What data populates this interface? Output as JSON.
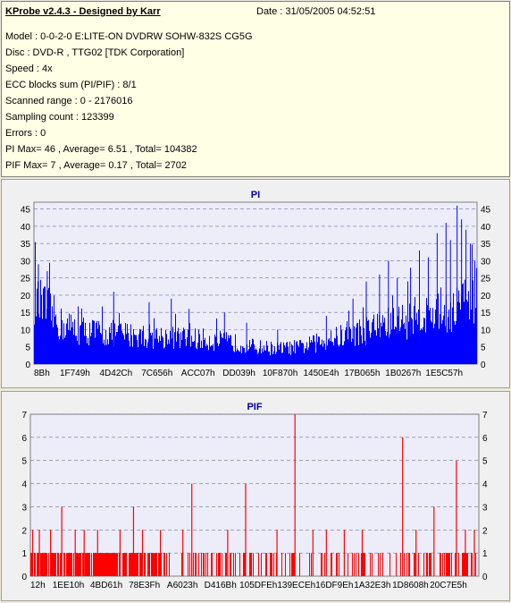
{
  "header": {
    "title": "KProbe v2.4.3 - Designed by Karr",
    "date": "Date : 31/05/2005 04:52:51",
    "lines": [
      "Model : 0-0-2-0 E:LITE-ON DVDRW SOHW-832S  CG5G",
      "Disc : DVD-R , TTG02 [TDK Corporation]",
      "Speed : 4x",
      "ECC blocks sum (PI/PIF) : 8/1",
      "Scanned range : 0 - 2176016",
      "Sampling count : 123399",
      "Errors : 0",
      "PI Max= 46 , Average= 6.51 , Total= 104382",
      "PIF Max= 7 , Average= 0.17 , Total= 2702"
    ]
  },
  "colors": {
    "plot_bg": "#ededfa",
    "pi_bar": "#0000ff",
    "pif_bar": "#ff0000",
    "grid": "#7070a0",
    "title": "#0000a0"
  },
  "chart_data": [
    {
      "type": "bar",
      "title": "PI",
      "ylim": [
        0,
        47
      ],
      "yticks": [
        0,
        5,
        10,
        15,
        20,
        25,
        30,
        35,
        40,
        45
      ],
      "xticks": [
        "8Bh",
        "1F749h",
        "4D42Ch",
        "7C656h",
        "ACC07h",
        "DD039h",
        "10F870h",
        "1450E4h",
        "17B065h",
        "1B0267h",
        "1E5C57h"
      ],
      "grid": true,
      "envelope": [
        [
          0,
          22
        ],
        [
          0.03,
          19
        ],
        [
          0.06,
          14
        ],
        [
          0.1,
          12
        ],
        [
          0.15,
          11
        ],
        [
          0.2,
          10.5
        ],
        [
          0.25,
          10
        ],
        [
          0.3,
          9.5
        ],
        [
          0.35,
          9
        ],
        [
          0.4,
          8.5
        ],
        [
          0.45,
          7.5
        ],
        [
          0.5,
          6
        ],
        [
          0.55,
          5.5
        ],
        [
          0.6,
          6
        ],
        [
          0.65,
          8
        ],
        [
          0.7,
          10
        ],
        [
          0.75,
          12
        ],
        [
          0.8,
          14
        ],
        [
          0.85,
          16
        ],
        [
          0.9,
          18
        ],
        [
          0.95,
          20
        ],
        [
          1.0,
          22
        ]
      ],
      "spikes": [
        [
          0.01,
          29
        ],
        [
          0.03,
          27
        ],
        [
          0.18,
          21
        ],
        [
          0.26,
          18
        ],
        [
          0.31,
          19
        ],
        [
          0.35,
          16
        ],
        [
          0.43,
          15
        ],
        [
          0.48,
          12
        ],
        [
          0.55,
          10
        ],
        [
          0.66,
          14
        ],
        [
          0.72,
          19
        ],
        [
          0.75,
          24
        ],
        [
          0.78,
          26
        ],
        [
          0.8,
          30
        ],
        [
          0.82,
          25
        ],
        [
          0.85,
          28
        ],
        [
          0.87,
          33
        ],
        [
          0.89,
          31
        ],
        [
          0.91,
          38
        ],
        [
          0.93,
          41
        ],
        [
          0.94,
          36
        ],
        [
          0.955,
          46
        ],
        [
          0.965,
          42
        ],
        [
          0.975,
          39
        ],
        [
          0.985,
          35
        ],
        [
          0.995,
          30
        ]
      ]
    },
    {
      "type": "bar",
      "title": "PIF",
      "ylim": [
        0,
        7
      ],
      "yticks": [
        0,
        1,
        2,
        3,
        4,
        5,
        6,
        7
      ],
      "xticks": [
        "12h",
        "1EE10h",
        "4BD61h",
        "78E3Fh",
        "A6023h",
        "D416Bh",
        "105DFEh",
        "139ECEh",
        "16DF9Eh",
        "1A32E3h",
        "1D8608h",
        "20C7E5h"
      ],
      "grid": true,
      "spikes": [
        [
          0.005,
          2
        ],
        [
          0.02,
          2
        ],
        [
          0.045,
          2
        ],
        [
          0.07,
          3
        ],
        [
          0.1,
          2
        ],
        [
          0.12,
          2
        ],
        [
          0.15,
          2
        ],
        [
          0.2,
          2
        ],
        [
          0.23,
          3
        ],
        [
          0.25,
          2
        ],
        [
          0.29,
          2
        ],
        [
          0.34,
          2
        ],
        [
          0.36,
          4
        ],
        [
          0.44,
          2
        ],
        [
          0.48,
          4
        ],
        [
          0.55,
          2
        ],
        [
          0.59,
          7
        ],
        [
          0.63,
          2
        ],
        [
          0.66,
          2
        ],
        [
          0.7,
          2
        ],
        [
          0.74,
          2
        ],
        [
          0.83,
          6
        ],
        [
          0.86,
          2
        ],
        [
          0.9,
          3
        ],
        [
          0.95,
          5
        ],
        [
          0.97,
          2
        ],
        [
          0.99,
          2
        ]
      ]
    }
  ]
}
